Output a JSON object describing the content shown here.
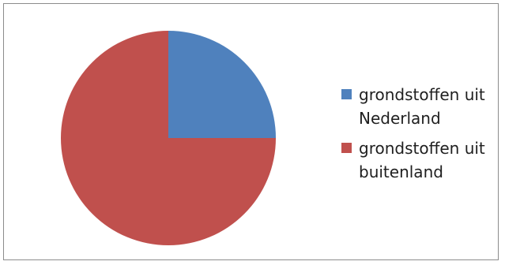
{
  "chart_data": {
    "type": "pie",
    "categories": [
      "grondstoffen uit Nederland",
      "grondstoffen uit buitenland"
    ],
    "values": [
      25,
      75
    ],
    "colors": [
      "#4F81BD",
      "#C0504D"
    ],
    "title": "",
    "legend_position": "right",
    "start_angle": "12 o'clock, clockwise"
  }
}
